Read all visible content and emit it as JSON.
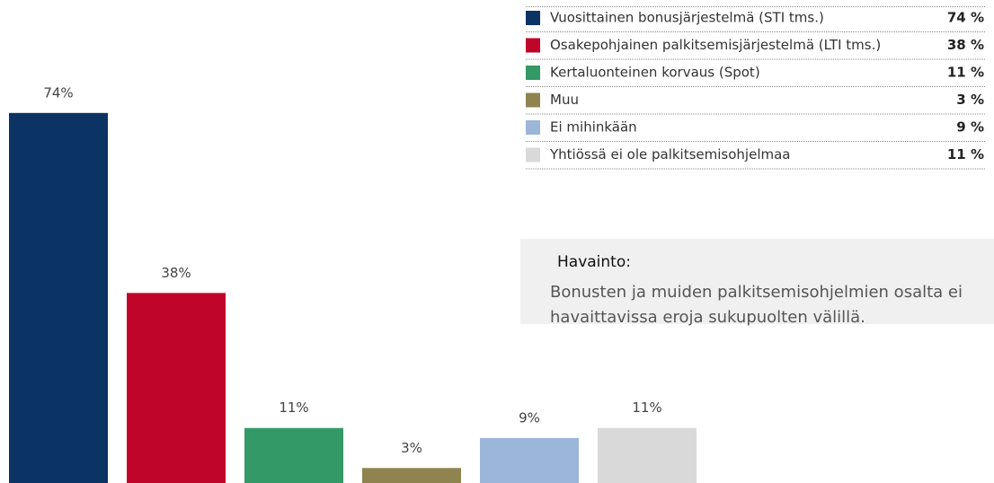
{
  "chart_data": {
    "type": "bar",
    "categories": [
      "Vuosittainen bonusjärjestelmä (STI tms.)",
      "Osakepohjainen palkitsemisjärjestelmä (LTI tms.)",
      "Kertaluonteinen korvaus (Spot)",
      "Muu",
      "Ei mihinkään",
      "Yhtiössä ei ole palkitsemisohjelmaa"
    ],
    "values": [
      74,
      38,
      11,
      3,
      9,
      11
    ],
    "value_labels": [
      "74%",
      "38%",
      "11%",
      "3%",
      "9%",
      "11%"
    ],
    "legend_labels": [
      "74 %",
      "38 %",
      "11 %",
      "3 %",
      "9 %",
      "11 %"
    ],
    "colors": [
      "#0b3363",
      "#c0052a",
      "#339966",
      "#8f8450",
      "#9cb6d9",
      "#d9d9d9"
    ],
    "annotation": {
      "title": "Havainto:",
      "lines": [
        "Bonusten ja muiden palkitsemisohjelmien osalta ei",
        "havaittavissa eroja sukupuolten välillä."
      ]
    }
  }
}
